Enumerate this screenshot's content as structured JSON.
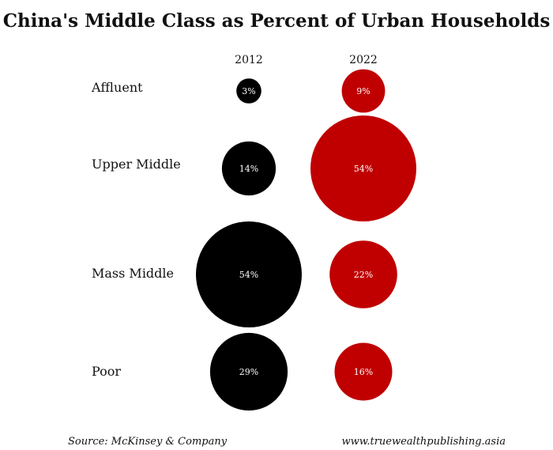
{
  "chart_data": {
    "type": "bubble",
    "title": "China's Middle Class as Percent of Urban Households",
    "columns": [
      "2012",
      "2022"
    ],
    "categories": [
      "Affluent",
      "Upper Middle",
      "Mass Middle",
      "Poor"
    ],
    "series": [
      {
        "name": "2012",
        "color": "#000000",
        "values": [
          3,
          14,
          54,
          29
        ],
        "labels": [
          "3%",
          "14%",
          "54%",
          "29%"
        ]
      },
      {
        "name": "2022",
        "color": "#c00000",
        "values": [
          9,
          54,
          22,
          16
        ],
        "labels": [
          "9%",
          "54%",
          "22%",
          "16%"
        ]
      }
    ]
  },
  "footer": {
    "source": "Source: McKinsey & Company",
    "website": "www.truewealthpublishing.asia"
  }
}
